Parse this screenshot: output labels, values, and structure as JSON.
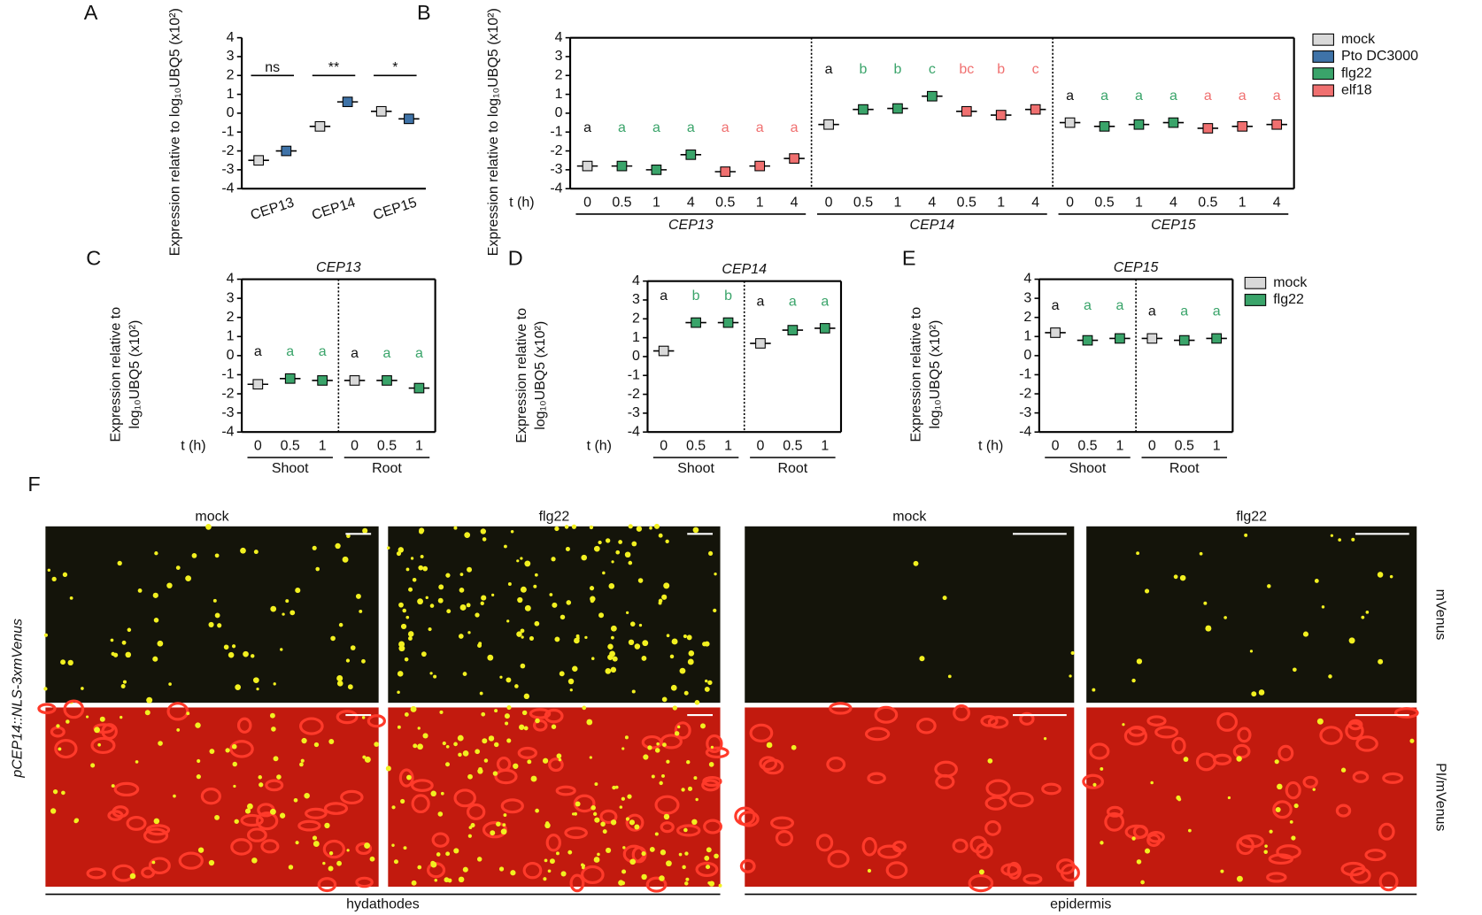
{
  "chart_data": [
    {
      "type": "dotplot",
      "panel_label": "A",
      "ylabel": [
        "Expression relative to log₁₀UBQ5 (x10²)"
      ],
      "categories": [
        "CEP13",
        "CEP14",
        "CEP15"
      ],
      "series": [
        {
          "name": "mock",
          "color": "#d9d9d9",
          "values": [
            -2.5,
            -0.7,
            0.1
          ]
        },
        {
          "name": "Pto DC3000",
          "color": "#3f73a8",
          "values": [
            -2.0,
            0.6,
            -0.3
          ]
        }
      ],
      "annotations": [
        "ns",
        "**",
        "*"
      ],
      "ylim": [
        -4,
        4
      ],
      "yticks": [
        -4,
        -3,
        -2,
        -1,
        0,
        1,
        2,
        3,
        4
      ],
      "legend": false
    },
    {
      "type": "dotplot",
      "panel_label": "B",
      "ylabel": [
        "Expression relative to log₁₀UBQ5 (x10²)"
      ],
      "xlabel": "t (h)",
      "categories": [
        "0",
        "0.5",
        "1",
        "4",
        "0.5",
        "1",
        "4",
        "0",
        "0.5",
        "1",
        "4",
        "0.5",
        "1",
        "4",
        "0",
        "0.5",
        "1",
        "4",
        "0.5",
        "1",
        "4"
      ],
      "groups": [
        "CEP13",
        "CEP14",
        "CEP15"
      ],
      "series": [
        {
          "name": "mock",
          "color": "#d9d9d9",
          "values": [
            -2.8,
            null,
            null,
            null,
            null,
            null,
            null,
            -0.6,
            null,
            null,
            null,
            null,
            null,
            null,
            -0.5,
            null,
            null,
            null,
            null,
            null,
            null
          ]
        },
        {
          "name": "Pto DC3000",
          "color": "#3f73a8",
          "values": [
            null,
            null,
            null,
            null,
            null,
            null,
            null,
            null,
            null,
            null,
            null,
            null,
            null,
            null,
            null,
            null,
            null,
            null,
            null,
            null,
            null
          ]
        },
        {
          "name": "flg22",
          "color": "#3aa46a",
          "values": [
            null,
            -2.8,
            -3.0,
            -2.2,
            null,
            null,
            null,
            null,
            0.2,
            0.25,
            0.9,
            null,
            null,
            null,
            null,
            -0.7,
            -0.6,
            -0.5,
            null,
            null,
            null
          ]
        },
        {
          "name": "elf18",
          "color": "#f07070",
          "values": [
            null,
            null,
            null,
            null,
            -3.1,
            -2.8,
            -2.4,
            null,
            null,
            null,
            null,
            0.1,
            -0.1,
            0.2,
            null,
            null,
            null,
            null,
            -0.8,
            -0.7,
            -0.6
          ]
        }
      ],
      "letters": [
        "a",
        "a",
        "a",
        "a",
        "a",
        "a",
        "a",
        "a",
        "b",
        "b",
        "c",
        "bc",
        "b",
        "c",
        "a",
        "a",
        "a",
        "a",
        "a",
        "a",
        "a"
      ],
      "ylim": [
        -4,
        4
      ],
      "yticks": [
        -4,
        -3,
        -2,
        -1,
        0,
        1,
        2,
        3,
        4
      ],
      "legend": true
    },
    {
      "type": "dotplot",
      "panel_label": "C",
      "title": "CEP13",
      "ylabel": [
        "Expression relative to",
        "log₁₀UBQ5 (x10²)"
      ],
      "xlabel": "t (h)",
      "categories": [
        "0",
        "0.5",
        "1",
        "0",
        "0.5",
        "1"
      ],
      "groups": [
        "Shoot",
        "Root"
      ],
      "series": [
        {
          "name": "mock",
          "color": "#d9d9d9",
          "values": [
            -1.5,
            null,
            null,
            -1.3,
            null,
            null
          ]
        },
        {
          "name": "flg22",
          "color": "#3aa46a",
          "values": [
            null,
            -1.2,
            -1.3,
            null,
            -1.3,
            -1.7
          ]
        }
      ],
      "letters": [
        "a",
        "a",
        "a",
        "a",
        "a",
        "a"
      ],
      "ylim": [
        -4,
        4
      ],
      "yticks": [
        -4,
        -3,
        -2,
        -1,
        0,
        1,
        2,
        3,
        4
      ],
      "legend": false
    },
    {
      "type": "dotplot",
      "panel_label": "D",
      "title": "CEP14",
      "ylabel": [
        "Expression relative to",
        "log₁₀UBQ5 (x10²)"
      ],
      "xlabel": "t (h)",
      "categories": [
        "0",
        "0.5",
        "1",
        "0",
        "0.5",
        "1"
      ],
      "groups": [
        "Shoot",
        "Root"
      ],
      "series": [
        {
          "name": "mock",
          "color": "#d9d9d9",
          "values": [
            0.3,
            null,
            null,
            0.7,
            null,
            null
          ]
        },
        {
          "name": "flg22",
          "color": "#3aa46a",
          "values": [
            null,
            1.8,
            1.8,
            null,
            1.4,
            1.5
          ]
        }
      ],
      "letters": [
        "a",
        "b",
        "b",
        "a",
        "a",
        "a"
      ],
      "ylim": [
        -4,
        4
      ],
      "yticks": [
        -4,
        -3,
        -2,
        -1,
        0,
        1,
        2,
        3,
        4
      ],
      "legend": false
    },
    {
      "type": "dotplot",
      "panel_label": "E",
      "title": "CEP15",
      "ylabel": [
        "Expression relative to",
        "log₁₀UBQ5 (x10²)"
      ],
      "xlabel": "t (h)",
      "categories": [
        "0",
        "0.5",
        "1",
        "0",
        "0.5",
        "1"
      ],
      "groups": [
        "Shoot",
        "Root"
      ],
      "series": [
        {
          "name": "mock",
          "color": "#d9d9d9",
          "values": [
            1.2,
            null,
            null,
            0.9,
            null,
            null
          ]
        },
        {
          "name": "flg22",
          "color": "#3aa46a",
          "values": [
            null,
            0.8,
            0.9,
            null,
            0.8,
            0.9
          ]
        }
      ],
      "letters": [
        "a",
        "a",
        "a",
        "a",
        "a",
        "a"
      ],
      "ylim": [
        -4,
        4
      ],
      "yticks": [
        -4,
        -3,
        -2,
        -1,
        0,
        1,
        2,
        3,
        4
      ],
      "legend": true
    }
  ],
  "figure_f": {
    "panel_label": "F",
    "side_label": "pCEP14::NLS-3xmVenus",
    "columns": [
      "mock",
      "flg22",
      "mock",
      "flg22"
    ],
    "rows": [
      "mVenus",
      "PI/mVenus"
    ],
    "groups": [
      "hydathodes",
      "epidermis"
    ]
  }
}
